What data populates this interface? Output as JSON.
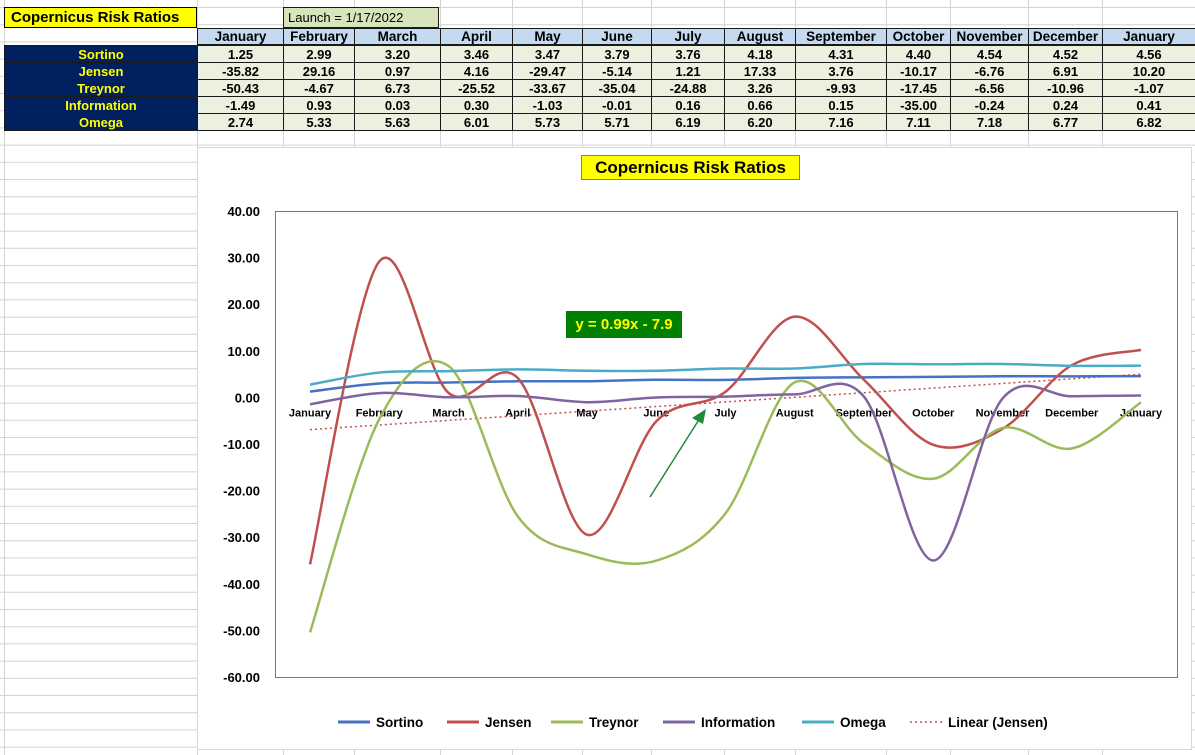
{
  "sheet": {
    "title": "Copernicus Risk Ratios",
    "launch": "Launch = 1/17/2022"
  },
  "table": {
    "months": [
      "January",
      "February",
      "March",
      "April",
      "May",
      "June",
      "July",
      "August",
      "September",
      "October",
      "November",
      "December",
      "January"
    ],
    "rows": [
      {
        "label": "Sortino",
        "values": [
          "1.25",
          "2.99",
          "3.20",
          "3.46",
          "3.47",
          "3.79",
          "3.76",
          "4.18",
          "4.31",
          "4.40",
          "4.54",
          "4.52",
          "4.56"
        ]
      },
      {
        "label": "Jensen",
        "values": [
          "-35.82",
          "29.16",
          "0.97",
          "4.16",
          "-29.47",
          "-5.14",
          "1.21",
          "17.33",
          "3.76",
          "-10.17",
          "-6.76",
          "6.91",
          "10.20"
        ]
      },
      {
        "label": "Treynor",
        "values": [
          "-50.43",
          "-4.67",
          "6.73",
          "-25.52",
          "-33.67",
          "-35.04",
          "-24.88",
          "3.26",
          "-9.93",
          "-17.45",
          "-6.56",
          "-10.96",
          "-1.07"
        ]
      },
      {
        "label": "Information",
        "values": [
          "-1.49",
          "0.93",
          "0.03",
          "0.30",
          "-1.03",
          "-0.01",
          "0.16",
          "0.66",
          "0.15",
          "-35.00",
          "-0.24",
          "0.24",
          "0.41"
        ]
      },
      {
        "label": "Omega",
        "values": [
          "2.74",
          "5.33",
          "5.63",
          "6.01",
          "5.73",
          "5.71",
          "6.19",
          "6.20",
          "7.16",
          "7.11",
          "7.18",
          "6.77",
          "6.82"
        ]
      }
    ]
  },
  "chart_data": {
    "type": "line",
    "title": "Copernicus Risk Ratios",
    "categories": [
      "January",
      "February",
      "March",
      "April",
      "May",
      "June",
      "July",
      "August",
      "September",
      "October",
      "November",
      "December",
      "January"
    ],
    "ylim": [
      -60,
      40
    ],
    "ytick_step": 10,
    "ytick_labels": [
      "40.00",
      "30.00",
      "20.00",
      "10.00",
      "0.00",
      "-10.00",
      "-20.00",
      "-30.00",
      "-40.00",
      "-50.00",
      "-60.00"
    ],
    "grid": false,
    "smooth": true,
    "legend_position": "bottom",
    "series": [
      {
        "name": "Sortino",
        "color": "#4472c4",
        "values": [
          1.25,
          2.99,
          3.2,
          3.46,
          3.47,
          3.79,
          3.76,
          4.18,
          4.31,
          4.4,
          4.54,
          4.52,
          4.56
        ]
      },
      {
        "name": "Jensen",
        "color": "#c0504d",
        "values": [
          -35.82,
          29.16,
          0.97,
          4.16,
          -29.47,
          -5.14,
          1.21,
          17.33,
          3.76,
          -10.17,
          -6.76,
          6.91,
          10.2
        ]
      },
      {
        "name": "Treynor",
        "color": "#9bbb59",
        "values": [
          -50.43,
          -4.67,
          6.73,
          -25.52,
          -33.67,
          -35.04,
          -24.88,
          3.26,
          -9.93,
          -17.45,
          -6.56,
          -10.96,
          -1.07
        ]
      },
      {
        "name": "Information",
        "color": "#8064a2",
        "values": [
          -1.49,
          0.93,
          0.03,
          0.3,
          -1.03,
          -0.01,
          0.16,
          0.66,
          0.15,
          -35.0,
          -0.24,
          0.24,
          0.41
        ]
      },
      {
        "name": "Omega",
        "color": "#4bacc6",
        "values": [
          2.74,
          5.33,
          5.63,
          6.01,
          5.73,
          5.71,
          6.19,
          6.2,
          7.16,
          7.11,
          7.18,
          6.77,
          6.82
        ]
      }
    ],
    "trendline": {
      "name": "Linear (Jensen)",
      "color": "#c0504d",
      "slope": 0.99,
      "intercept": -7.9,
      "style": "dotted"
    },
    "annotation": {
      "text": "y = 0.99x - 7.9",
      "background": "#008000",
      "color": "#ffff00"
    },
    "arrow_color": "#1e8a3c"
  }
}
